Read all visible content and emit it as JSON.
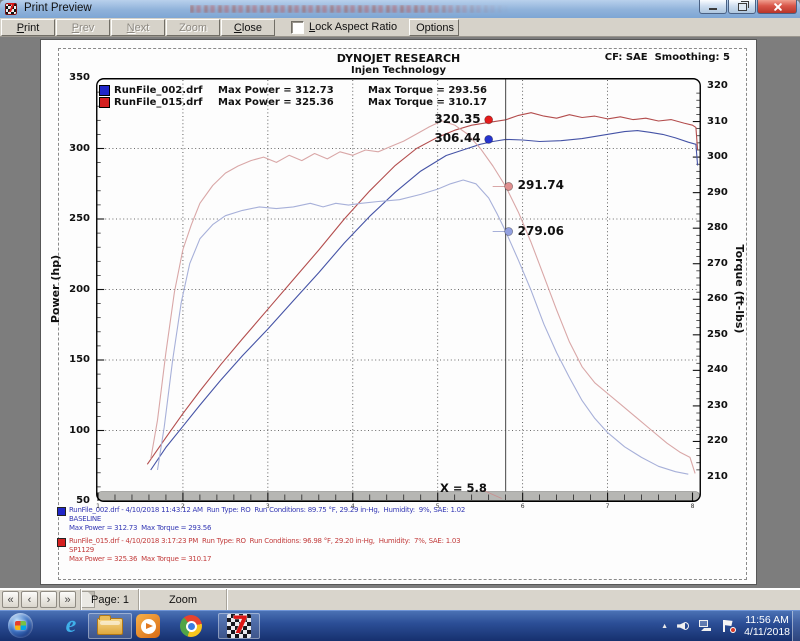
{
  "window": {
    "title": "Print Preview"
  },
  "toolbar": {
    "buttons": [
      {
        "name": "print-button",
        "label": "Print",
        "underline": 0,
        "enabled": true
      },
      {
        "name": "prev-button",
        "label": "Prev",
        "underline": 0,
        "enabled": false
      },
      {
        "name": "next-button",
        "label": "Next",
        "underline": 0,
        "enabled": false
      },
      {
        "name": "zoom-out-button",
        "label": "Zoom Out",
        "underline": 5,
        "enabled": false
      },
      {
        "name": "close-preview-button",
        "label": "Close",
        "underline": 0,
        "enabled": true
      }
    ],
    "checkbox": {
      "label": "Lock Aspect Ratio",
      "underline": 0,
      "checked": false
    },
    "options_label": "Options"
  },
  "chart_header": {
    "company": "DYNOJET RESEARCH",
    "subtitle": "Injen Technology",
    "cf": "CF: SAE  Smoothing: 5"
  },
  "legend": {
    "rows": [
      {
        "color": "#2026c8",
        "file": "RunFile_002.drf",
        "power": "Max Power = 312.73",
        "torque": "Max Torque = 293.56"
      },
      {
        "color": "#d42020",
        "file": "RunFile_015.drf",
        "power": "Max Power = 325.36",
        "torque": "Max Torque = 310.17"
      }
    ]
  },
  "chart_data": {
    "type": "line",
    "title": "DYNOJET RESEARCH - Injen Technology",
    "x_axis": {
      "ticks": [
        1,
        2,
        3,
        4,
        5,
        6,
        7,
        8
      ],
      "range": [
        1,
        8.1
      ]
    },
    "y_left": {
      "label": "Power (hp)",
      "range": [
        50,
        350
      ],
      "ticks": [
        350,
        300,
        250,
        200,
        150,
        100,
        50
      ]
    },
    "y_right": {
      "label": "Torque (ft-lbs)",
      "range": [
        210,
        320
      ],
      "ticks": [
        320,
        310,
        300,
        290,
        280,
        270,
        260,
        250,
        240,
        230,
        220,
        210
      ]
    },
    "cursor": {
      "x": 5.8,
      "label": "X = 5.8"
    },
    "grid": true,
    "series": [
      {
        "name": "RunFile_002.drf Power",
        "axis": "left",
        "color": "#4553a6",
        "points": [
          [
            1.62,
            72
          ],
          [
            1.8,
            88
          ],
          [
            2.0,
            103
          ],
          [
            2.2,
            118
          ],
          [
            2.45,
            136
          ],
          [
            2.7,
            153
          ],
          [
            3.0,
            172
          ],
          [
            3.3,
            192
          ],
          [
            3.6,
            212
          ],
          [
            3.9,
            233
          ],
          [
            4.2,
            252
          ],
          [
            4.5,
            269
          ],
          [
            4.8,
            284
          ],
          [
            5.1,
            295
          ],
          [
            5.35,
            300
          ],
          [
            5.5,
            303
          ],
          [
            5.65,
            305
          ],
          [
            5.8,
            306.44
          ],
          [
            6.0,
            306
          ],
          [
            6.2,
            305
          ],
          [
            6.45,
            305.5
          ],
          [
            6.7,
            307
          ],
          [
            6.95,
            309.5
          ],
          [
            7.2,
            312
          ],
          [
            7.35,
            312.73
          ],
          [
            7.5,
            311.5
          ],
          [
            7.65,
            310
          ],
          [
            7.8,
            307.5
          ],
          [
            7.95,
            304.5
          ],
          [
            8.04,
            303
          ],
          [
            8.06,
            288
          ]
        ]
      },
      {
        "name": "RunFile_015.drf Power",
        "axis": "left",
        "color": "#b34d4d",
        "points": [
          [
            1.58,
            76
          ],
          [
            1.8,
            95
          ],
          [
            2.0,
            112
          ],
          [
            2.2,
            128
          ],
          [
            2.45,
            147
          ],
          [
            2.7,
            165
          ],
          [
            3.0,
            186
          ],
          [
            3.3,
            207
          ],
          [
            3.6,
            228
          ],
          [
            3.9,
            250
          ],
          [
            4.2,
            270
          ],
          [
            4.5,
            288
          ],
          [
            4.75,
            300
          ],
          [
            5.0,
            308
          ],
          [
            5.2,
            313
          ],
          [
            5.4,
            316.5
          ],
          [
            5.6,
            318.5
          ],
          [
            5.8,
            320.35
          ],
          [
            5.95,
            323.5
          ],
          [
            6.1,
            325.36
          ],
          [
            6.25,
            323
          ],
          [
            6.4,
            321.5
          ],
          [
            6.55,
            324
          ],
          [
            6.7,
            322
          ],
          [
            6.85,
            323
          ],
          [
            7.0,
            321
          ],
          [
            7.15,
            322.5
          ],
          [
            7.3,
            320.5
          ],
          [
            7.45,
            321.5
          ],
          [
            7.6,
            319.5
          ],
          [
            7.75,
            320.5
          ],
          [
            7.9,
            318
          ],
          [
            8.0,
            316.5
          ],
          [
            8.04,
            315
          ],
          [
            8.06,
            299
          ]
        ]
      },
      {
        "name": "RunFile_002.drf Torque",
        "axis": "right",
        "color": "#a7b0d9",
        "points": [
          [
            1.7,
            212
          ],
          [
            1.78,
            224
          ],
          [
            1.88,
            243
          ],
          [
            1.98,
            259
          ],
          [
            2.08,
            270
          ],
          [
            2.2,
            277
          ],
          [
            2.35,
            281
          ],
          [
            2.5,
            283.5
          ],
          [
            2.7,
            285
          ],
          [
            2.9,
            286
          ],
          [
            3.1,
            285.5
          ],
          [
            3.3,
            286
          ],
          [
            3.5,
            287
          ],
          [
            3.65,
            286
          ],
          [
            3.8,
            287
          ],
          [
            3.95,
            286.5
          ],
          [
            4.1,
            287
          ],
          [
            4.3,
            287.5
          ],
          [
            4.55,
            288
          ],
          [
            4.8,
            289.5
          ],
          [
            5.0,
            291
          ],
          [
            5.15,
            292.5
          ],
          [
            5.3,
            293.56
          ],
          [
            5.45,
            292.5
          ],
          [
            5.6,
            288.5
          ],
          [
            5.7,
            284
          ],
          [
            5.8,
            279.06
          ],
          [
            5.95,
            271
          ],
          [
            6.1,
            262.5
          ],
          [
            6.25,
            253
          ],
          [
            6.4,
            245
          ],
          [
            6.55,
            238
          ],
          [
            6.7,
            231.5
          ],
          [
            6.85,
            226.5
          ],
          [
            7.0,
            222.5
          ],
          [
            7.2,
            218.5
          ],
          [
            7.4,
            215.5
          ],
          [
            7.6,
            213
          ],
          [
            7.8,
            211.5
          ],
          [
            7.95,
            210.8
          ]
        ]
      },
      {
        "name": "RunFile_015.drf Torque",
        "axis": "right",
        "color": "#d9a7a7",
        "points": [
          [
            1.62,
            215
          ],
          [
            1.7,
            226
          ],
          [
            1.8,
            245
          ],
          [
            1.9,
            262
          ],
          [
            2.0,
            274
          ],
          [
            2.1,
            281
          ],
          [
            2.2,
            287
          ],
          [
            2.35,
            292
          ],
          [
            2.5,
            295.5
          ],
          [
            2.65,
            297.5
          ],
          [
            2.8,
            299
          ],
          [
            2.95,
            300
          ],
          [
            3.1,
            298.5
          ],
          [
            3.25,
            300.5
          ],
          [
            3.4,
            299
          ],
          [
            3.55,
            301
          ],
          [
            3.7,
            299.5
          ],
          [
            3.85,
            301.5
          ],
          [
            4.0,
            300.5
          ],
          [
            4.15,
            302
          ],
          [
            4.3,
            301.5
          ],
          [
            4.45,
            303
          ],
          [
            4.6,
            304.5
          ],
          [
            4.75,
            306.5
          ],
          [
            4.9,
            308.5
          ],
          [
            5.05,
            310.17
          ],
          [
            5.2,
            309
          ],
          [
            5.35,
            306.5
          ],
          [
            5.5,
            302.5
          ],
          [
            5.65,
            297.5
          ],
          [
            5.8,
            291.74
          ],
          [
            5.95,
            284.5
          ],
          [
            6.1,
            276
          ],
          [
            6.25,
            266.5
          ],
          [
            6.4,
            257
          ],
          [
            6.55,
            248
          ],
          [
            6.7,
            241
          ],
          [
            6.85,
            236.5
          ],
          [
            7.0,
            233.5
          ],
          [
            7.15,
            230.5
          ],
          [
            7.3,
            227.5
          ],
          [
            7.5,
            223.5
          ],
          [
            7.7,
            219.5
          ],
          [
            7.85,
            217
          ],
          [
            7.97,
            215.5
          ],
          [
            8.03,
            211
          ]
        ]
      }
    ],
    "markers": [
      {
        "label": "320.35",
        "series": 1,
        "value": 320.35,
        "color": "#e51b1b",
        "label_side": "left"
      },
      {
        "label": "306.44",
        "series": 0,
        "value": 306.44,
        "color": "#2633cf",
        "label_side": "left"
      },
      {
        "label": "291.74",
        "series": 3,
        "value": 291.74,
        "color": "#e08f8f",
        "label_side": "right"
      },
      {
        "label": "279.06",
        "series": 2,
        "value": 279.06,
        "color": "#93a0e0",
        "label_side": "right"
      }
    ]
  },
  "annotations": [
    {
      "color": "#3438b4",
      "swatch": "#2026c8",
      "lines": [
        "RunFile_002.drf - 4/10/2018 11:43:12 AM  Run Type: RO  Run Conditions: 89.75 °F, 29.29 in-Hg,  Humidity:  9%, SAE: 1.02",
        "BASELINE",
        "Max Power = 312.73  Max Torque = 293.56"
      ]
    },
    {
      "color": "#c23c3c",
      "swatch": "#d42020",
      "lines": [
        "RunFile_015.drf - 4/10/2018 3:17:23 PM  Run Type: RO  Run Conditions: 96.98 °F, 29.20 in-Hg,  Humidity:  7%, SAE: 1.03",
        "SP1129",
        "Max Power = 325.36  Max Torque = 310.17"
      ]
    }
  ],
  "statusbar": {
    "nav": [
      "«",
      "‹",
      "›",
      "»"
    ],
    "page_label": "Page: 1",
    "zoom_label": "Zoom"
  },
  "taskbar": {
    "icons": [
      "start-orb",
      "internet-explorer",
      "windows-explorer",
      "media-player",
      "chrome",
      "winpep-7"
    ],
    "tray": {
      "time": "11:56 AM",
      "date": "4/11/2018"
    }
  }
}
